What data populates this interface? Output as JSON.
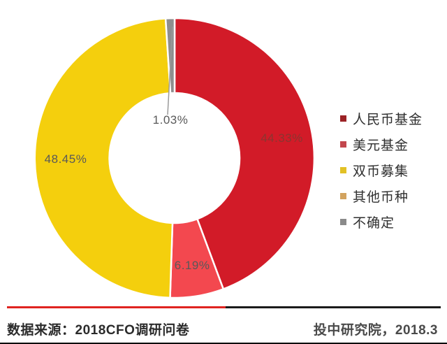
{
  "chart_data": {
    "type": "pie",
    "subtype": "donut",
    "title": "",
    "unit": "%",
    "start_angle": "top",
    "direction": "clockwise",
    "legend_position": "right",
    "hole_ratio": 0.465,
    "slices": [
      {
        "name": "人民币基金",
        "value": 44.33,
        "label": "44.33%",
        "color": "#d21b28",
        "label_color": "#8b3530"
      },
      {
        "name": "美元基金",
        "value": 6.19,
        "label": "6.19%",
        "color": "#f3484f",
        "label_color": "#595959"
      },
      {
        "name": "双币募集",
        "value": 48.45,
        "label": "48.45%",
        "color": "#f4cf0d",
        "label_color": "#595959"
      },
      {
        "name": "其他币种",
        "value": 0,
        "label": "",
        "color": "#dda55c",
        "label_color": "#595959"
      },
      {
        "name": "不确定",
        "value": 1.03,
        "label": "1.03%",
        "color": "#8e8e8e",
        "label_color": "#595959",
        "label_in_hole": true
      }
    ],
    "legend": [
      {
        "label": "人民币基金",
        "color": "#9b2226"
      },
      {
        "label": "美元基金",
        "color": "#c2464d"
      },
      {
        "label": "双币募集",
        "color": "#e2c125"
      },
      {
        "label": "其他币种",
        "color": "#d2a35f"
      },
      {
        "label": "不确定",
        "color": "#8a8a8a"
      }
    ],
    "leader_line_color": "#9a9a9a"
  },
  "footer": {
    "source": "数据来源：2018CFO调研问卷",
    "credit": "投中研究院，2018.3",
    "divider": {
      "left_color": "#e02420",
      "right_color": "#1a1a1a"
    }
  }
}
